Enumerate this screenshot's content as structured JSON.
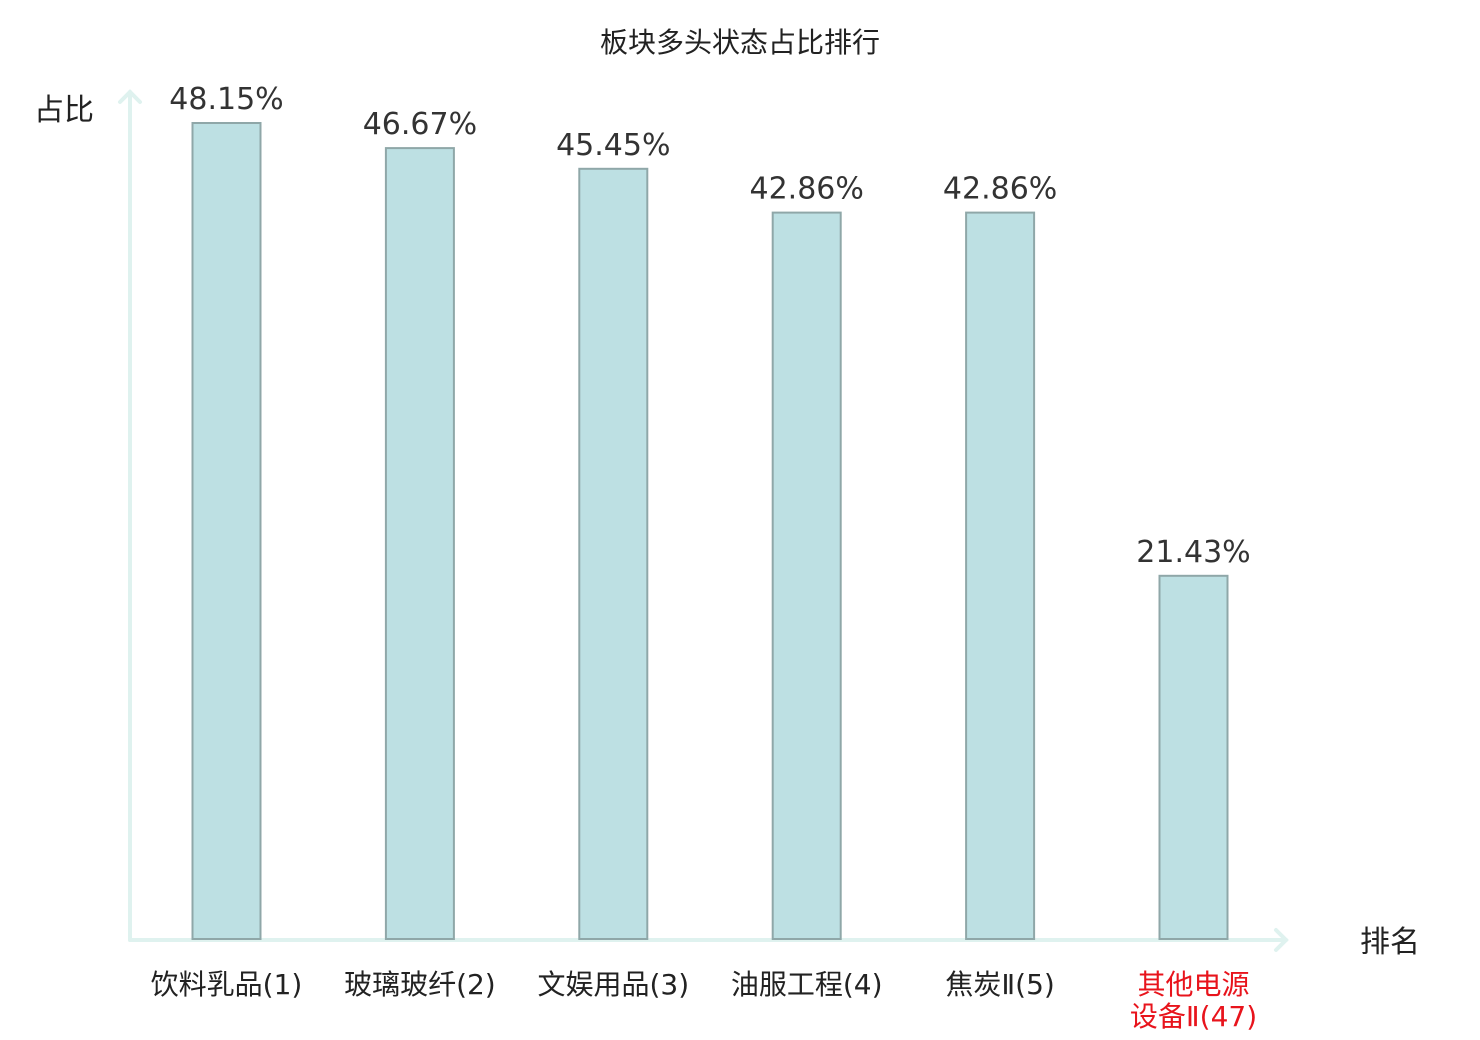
{
  "chart_data": {
    "type": "bar",
    "title": "板块多头状态占比排行",
    "ylabel": "占比",
    "xlabel": "排名",
    "categories": [
      [
        "饮料乳品(1)"
      ],
      [
        "玻璃玻纤(2)"
      ],
      [
        "文娱用品(3)"
      ],
      [
        "油服工程(4)"
      ],
      [
        "焦炭Ⅱ(5)"
      ],
      [
        "其他电源",
        "设备Ⅱ(47)"
      ]
    ],
    "values": [
      48.15,
      46.67,
      45.45,
      42.86,
      42.86,
      21.43
    ],
    "value_labels": [
      "48.15%",
      "46.67%",
      "45.45%",
      "42.86%",
      "42.86%",
      "21.43%"
    ],
    "highlight_index": 5,
    "ylim": [
      0,
      50
    ],
    "grid": false,
    "colors": {
      "bar_fill": "#bde0e3",
      "bar_stroke": "#8fa7a8",
      "axis": "#dff2ef",
      "highlight_text": "#e8141c",
      "text": "#222222"
    }
  }
}
